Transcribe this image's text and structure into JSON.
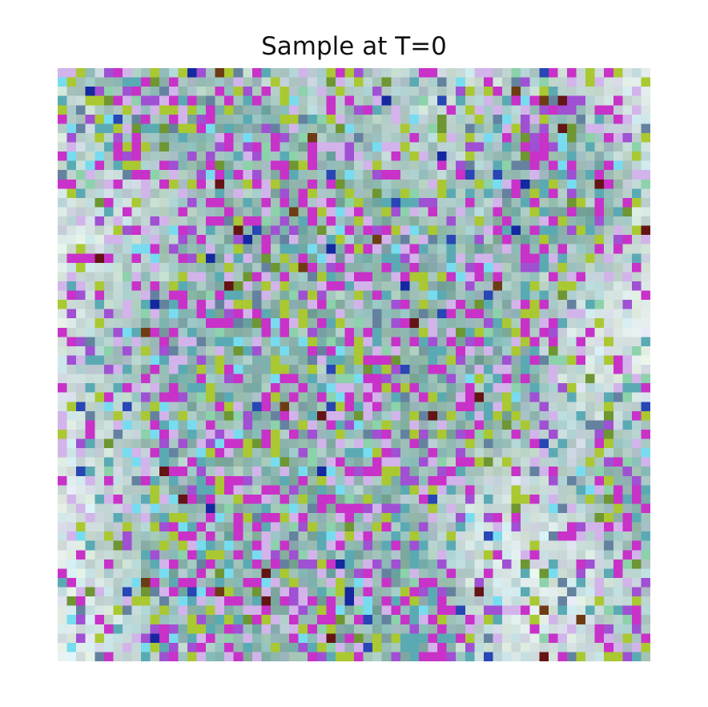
{
  "figure": {
    "title": "Sample at T=0"
  },
  "image": {
    "grid_size": 64,
    "seed": 1337,
    "base_color": "#e3ebeb",
    "palette": {
      "magenta": "#c832c8",
      "purple": "#a050d2",
      "lime": "#aac832",
      "olive": "#6e9632",
      "teal": "#5aaab4",
      "cyan": "#78dcf0",
      "blue": "#2846b4",
      "navy": "#1428a0",
      "brown": "#6e3c14",
      "darkred": "#641414",
      "slate": "#6482a0",
      "lavender": "#d2b4eb",
      "mint": "#8cd2aa",
      "pale": "#f0f5f0"
    }
  }
}
